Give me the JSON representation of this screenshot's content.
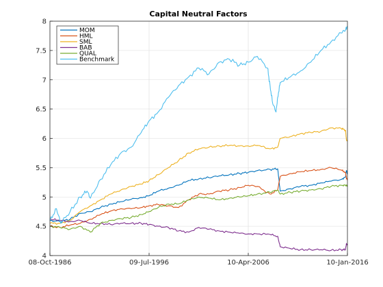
{
  "chart_data": {
    "type": "line",
    "title": "Capital Neutral Factors",
    "xlabel": "",
    "ylabel": "",
    "x_range": [
      "1986-10-08",
      "2016-01-10"
    ],
    "ylim": [
      4,
      8
    ],
    "x_ticks": [
      "08-Oct-1986",
      "09-Jul-1996",
      "10-Apr-2006",
      "10-Jan-2016"
    ],
    "y_ticks": [
      "4",
      "4.5",
      "5",
      "5.5",
      "6",
      "6.5",
      "7",
      "7.5",
      "8"
    ],
    "grid": true,
    "legend_position": "top-left",
    "series": [
      {
        "name": "MOM",
        "color": "#0072BD",
        "points": [
          [
            "1986-10-08",
            4.6
          ],
          [
            "1987-10-01",
            4.58
          ],
          [
            "1988-10-01",
            4.62
          ],
          [
            "1989-10-01",
            4.72
          ],
          [
            "1990-10-01",
            4.75
          ],
          [
            "1991-10-01",
            4.82
          ],
          [
            "1992-10-01",
            4.88
          ],
          [
            "1993-10-01",
            4.92
          ],
          [
            "1994-10-01",
            4.96
          ],
          [
            "1995-10-01",
            4.99
          ],
          [
            "1996-07-09",
            5.02
          ],
          [
            "1997-06-01",
            5.1
          ],
          [
            "1998-06-01",
            5.15
          ],
          [
            "1999-06-01",
            5.2
          ],
          [
            "2000-06-01",
            5.28
          ],
          [
            "2001-06-01",
            5.31
          ],
          [
            "2002-06-01",
            5.33
          ],
          [
            "2003-06-01",
            5.36
          ],
          [
            "2004-06-01",
            5.38
          ],
          [
            "2005-06-01",
            5.4
          ],
          [
            "2006-04-10",
            5.42
          ],
          [
            "2007-03-01",
            5.45
          ],
          [
            "2008-06-01",
            5.47
          ],
          [
            "2009-03-01",
            5.48
          ],
          [
            "2009-06-01",
            5.1
          ],
          [
            "2010-06-01",
            5.14
          ],
          [
            "2011-06-01",
            5.18
          ],
          [
            "2012-06-01",
            5.2
          ],
          [
            "2013-06-01",
            5.24
          ],
          [
            "2014-06-01",
            5.27
          ],
          [
            "2015-06-01",
            5.3
          ],
          [
            "2015-11-01",
            5.34
          ],
          [
            "2015-12-01",
            5.45
          ],
          [
            "2016-01-10",
            5.4
          ]
        ]
      },
      {
        "name": "HML",
        "color": "#D95319",
        "points": [
          [
            "1986-10-08",
            4.5
          ],
          [
            "1987-10-01",
            4.48
          ],
          [
            "1988-10-01",
            4.52
          ],
          [
            "1989-10-01",
            4.55
          ],
          [
            "1990-10-01",
            4.62
          ],
          [
            "1991-10-01",
            4.7
          ],
          [
            "1992-10-01",
            4.76
          ],
          [
            "1993-10-01",
            4.8
          ],
          [
            "1994-10-01",
            4.8
          ],
          [
            "1995-10-01",
            4.82
          ],
          [
            "1996-07-09",
            4.85
          ],
          [
            "1997-06-01",
            4.87
          ],
          [
            "1998-06-01",
            4.85
          ],
          [
            "1999-06-01",
            4.82
          ],
          [
            "2000-06-01",
            4.95
          ],
          [
            "2001-06-01",
            5.05
          ],
          [
            "2002-06-01",
            5.05
          ],
          [
            "2003-06-01",
            5.1
          ],
          [
            "2004-06-01",
            5.12
          ],
          [
            "2005-06-01",
            5.16
          ],
          [
            "2006-04-10",
            5.2
          ],
          [
            "2007-03-01",
            5.18
          ],
          [
            "2008-06-01",
            5.05
          ],
          [
            "2009-03-01",
            5.12
          ],
          [
            "2009-06-01",
            5.35
          ],
          [
            "2010-06-01",
            5.4
          ],
          [
            "2011-06-01",
            5.43
          ],
          [
            "2012-06-01",
            5.45
          ],
          [
            "2013-06-01",
            5.47
          ],
          [
            "2014-06-01",
            5.5
          ],
          [
            "2015-06-01",
            5.46
          ],
          [
            "2015-11-01",
            5.42
          ],
          [
            "2015-12-01",
            5.32
          ],
          [
            "2016-01-10",
            5.3
          ]
        ]
      },
      {
        "name": "SML",
        "color": "#EDB120",
        "points": [
          [
            "1986-10-08",
            4.55
          ],
          [
            "1987-10-01",
            4.55
          ],
          [
            "1988-10-01",
            4.6
          ],
          [
            "1989-10-01",
            4.75
          ],
          [
            "1990-10-01",
            4.85
          ],
          [
            "1991-10-01",
            4.95
          ],
          [
            "1992-10-01",
            5.05
          ],
          [
            "1993-10-01",
            5.12
          ],
          [
            "1994-10-01",
            5.18
          ],
          [
            "1995-10-01",
            5.22
          ],
          [
            "1996-07-09",
            5.28
          ],
          [
            "1997-06-01",
            5.38
          ],
          [
            "1998-06-01",
            5.5
          ],
          [
            "1999-06-01",
            5.62
          ],
          [
            "2000-06-01",
            5.75
          ],
          [
            "2001-06-01",
            5.82
          ],
          [
            "2002-06-01",
            5.85
          ],
          [
            "2003-06-01",
            5.87
          ],
          [
            "2004-06-01",
            5.88
          ],
          [
            "2005-06-01",
            5.87
          ],
          [
            "2006-04-10",
            5.87
          ],
          [
            "2007-03-01",
            5.88
          ],
          [
            "2008-06-01",
            5.82
          ],
          [
            "2009-03-01",
            5.85
          ],
          [
            "2009-06-01",
            6.0
          ],
          [
            "2010-06-01",
            6.03
          ],
          [
            "2011-06-01",
            6.08
          ],
          [
            "2012-06-01",
            6.1
          ],
          [
            "2013-06-01",
            6.12
          ],
          [
            "2014-06-01",
            6.18
          ],
          [
            "2015-06-01",
            6.17
          ],
          [
            "2015-11-01",
            6.14
          ],
          [
            "2015-12-01",
            5.98
          ],
          [
            "2016-01-10",
            5.95
          ]
        ]
      },
      {
        "name": "BAB",
        "color": "#7E2F8E",
        "points": [
          [
            "1986-10-08",
            4.62
          ],
          [
            "1987-10-01",
            4.6
          ],
          [
            "1988-10-01",
            4.58
          ],
          [
            "1989-10-01",
            4.6
          ],
          [
            "1990-10-01",
            4.55
          ],
          [
            "1991-10-01",
            4.55
          ],
          [
            "1992-10-01",
            4.53
          ],
          [
            "1993-10-01",
            4.55
          ],
          [
            "1994-10-01",
            4.55
          ],
          [
            "1995-10-01",
            4.55
          ],
          [
            "1996-07-09",
            4.53
          ],
          [
            "1997-06-01",
            4.5
          ],
          [
            "1998-06-01",
            4.48
          ],
          [
            "1999-06-01",
            4.42
          ],
          [
            "2000-06-01",
            4.4
          ],
          [
            "2001-06-01",
            4.48
          ],
          [
            "2002-06-01",
            4.45
          ],
          [
            "2003-06-01",
            4.42
          ],
          [
            "2004-06-01",
            4.4
          ],
          [
            "2005-06-01",
            4.38
          ],
          [
            "2006-04-10",
            4.37
          ],
          [
            "2007-03-01",
            4.37
          ],
          [
            "2008-06-01",
            4.36
          ],
          [
            "2009-03-01",
            4.33
          ],
          [
            "2009-06-01",
            4.15
          ],
          [
            "2010-06-01",
            4.12
          ],
          [
            "2011-06-01",
            4.1
          ],
          [
            "2012-06-01",
            4.1
          ],
          [
            "2013-06-01",
            4.1
          ],
          [
            "2014-06-01",
            4.09
          ],
          [
            "2015-06-01",
            4.1
          ],
          [
            "2015-11-01",
            4.1
          ],
          [
            "2015-12-01",
            4.2
          ],
          [
            "2016-01-10",
            4.18
          ]
        ]
      },
      {
        "name": "QUAL",
        "color": "#77AC30",
        "points": [
          [
            "1986-10-08",
            4.5
          ],
          [
            "1987-10-01",
            4.48
          ],
          [
            "1988-10-01",
            4.45
          ],
          [
            "1989-10-01",
            4.5
          ],
          [
            "1990-10-01",
            4.4
          ],
          [
            "1991-10-01",
            4.55
          ],
          [
            "1992-10-01",
            4.6
          ],
          [
            "1993-10-01",
            4.63
          ],
          [
            "1994-10-01",
            4.65
          ],
          [
            "1995-10-01",
            4.7
          ],
          [
            "1996-07-09",
            4.75
          ],
          [
            "1997-06-01",
            4.82
          ],
          [
            "1998-06-01",
            4.88
          ],
          [
            "1999-06-01",
            4.88
          ],
          [
            "2000-06-01",
            4.95
          ],
          [
            "2001-06-01",
            5.0
          ],
          [
            "2002-06-01",
            4.98
          ],
          [
            "2003-06-01",
            4.95
          ],
          [
            "2004-06-01",
            4.98
          ],
          [
            "2005-06-01",
            5.0
          ],
          [
            "2006-04-10",
            5.02
          ],
          [
            "2007-03-01",
            5.05
          ],
          [
            "2008-06-01",
            5.08
          ],
          [
            "2009-03-01",
            5.12
          ],
          [
            "2009-06-01",
            5.05
          ],
          [
            "2010-06-01",
            5.08
          ],
          [
            "2011-06-01",
            5.1
          ],
          [
            "2012-06-01",
            5.12
          ],
          [
            "2013-06-01",
            5.14
          ],
          [
            "2014-06-01",
            5.18
          ],
          [
            "2015-06-01",
            5.2
          ],
          [
            "2015-11-01",
            5.2
          ],
          [
            "2015-12-01",
            5.19
          ],
          [
            "2016-01-10",
            5.2
          ]
        ]
      },
      {
        "name": "Benchmark",
        "color": "#4DBEEE",
        "points": [
          [
            "1986-10-08",
            4.6
          ],
          [
            "1987-06-01",
            4.8
          ],
          [
            "1987-11-01",
            4.55
          ],
          [
            "1988-10-01",
            4.75
          ],
          [
            "1989-10-01",
            5.0
          ],
          [
            "1990-06-01",
            5.1
          ],
          [
            "1990-10-01",
            4.98
          ],
          [
            "1991-10-01",
            5.3
          ],
          [
            "1992-10-01",
            5.55
          ],
          [
            "1993-10-01",
            5.75
          ],
          [
            "1994-10-01",
            5.85
          ],
          [
            "1995-10-01",
            6.1
          ],
          [
            "1996-07-09",
            6.3
          ],
          [
            "1997-06-01",
            6.45
          ],
          [
            "1998-06-01",
            6.7
          ],
          [
            "1999-06-01",
            6.9
          ],
          [
            "2000-06-01",
            7.05
          ],
          [
            "2001-06-01",
            7.2
          ],
          [
            "2002-06-01",
            7.1
          ],
          [
            "2003-06-01",
            7.3
          ],
          [
            "2004-06-01",
            7.35
          ],
          [
            "2005-06-01",
            7.25
          ],
          [
            "2006-04-10",
            7.3
          ],
          [
            "2007-03-01",
            7.4
          ],
          [
            "2008-03-01",
            7.2
          ],
          [
            "2008-06-01",
            6.9
          ],
          [
            "2008-09-01",
            6.6
          ],
          [
            "2009-01-01",
            6.45
          ],
          [
            "2009-03-01",
            6.7
          ],
          [
            "2009-06-01",
            6.95
          ],
          [
            "2010-06-01",
            7.05
          ],
          [
            "2011-06-01",
            7.15
          ],
          [
            "2012-06-01",
            7.3
          ],
          [
            "2013-06-01",
            7.5
          ],
          [
            "2014-06-01",
            7.65
          ],
          [
            "2015-06-01",
            7.8
          ],
          [
            "2015-11-01",
            7.85
          ],
          [
            "2016-01-10",
            7.92
          ]
        ]
      }
    ]
  }
}
